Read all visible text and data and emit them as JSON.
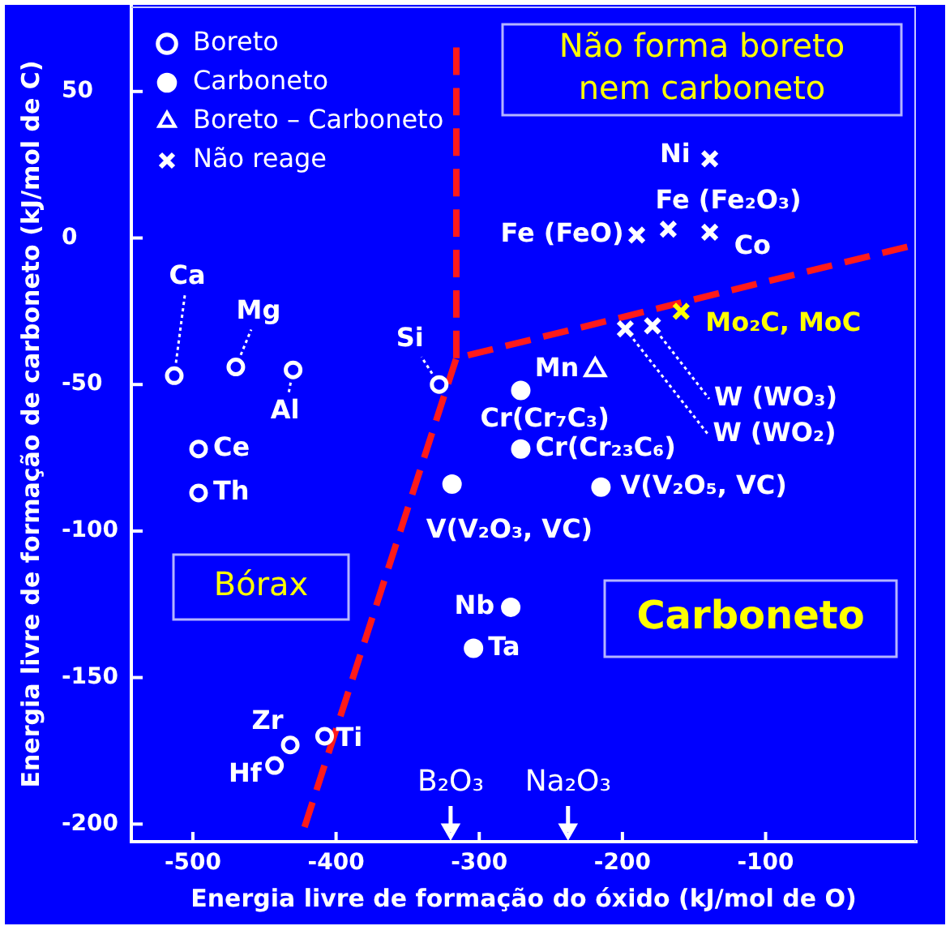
{
  "chart_data": {
    "type": "scatter",
    "xlabel": "Energia livre de formação do óxido (kJ/mol de O)",
    "ylabel": "Energia livre de formação de carboneto (kJ/mol de C)",
    "xlim": [
      -543,
      5
    ],
    "xticks": [
      -500,
      -400,
      -300,
      -200,
      -100
    ],
    "ylim": [
      -206,
      79
    ],
    "yticks": [
      -200,
      -150,
      -100,
      -50,
      0,
      50
    ],
    "legend": "top left",
    "series": [
      {
        "name": "Boreto",
        "color": "#ffffff",
        "marker": "circle",
        "x": [
          -513,
          -470,
          -430,
          -328,
          -496,
          -496,
          -432,
          -443,
          -408
        ],
        "values": [
          -47,
          -44,
          -45,
          -50,
          -72,
          -87,
          -173,
          -180,
          -170
        ]
      },
      {
        "name": "Carboneto",
        "color": "#ffffff",
        "marker": "circle",
        "x": [
          -319,
          -278,
          -304,
          -215,
          -271,
          -271
        ],
        "values": [
          -84,
          -126,
          -140,
          -85,
          -52,
          -72
        ]
      },
      {
        "name": "Boreto – Carboneto",
        "color": "#ffffff",
        "marker": "triangle",
        "x": [
          -219
        ],
        "values": [
          -45
        ]
      },
      {
        "name": "Não reage",
        "marker": "cross",
        "colors": [
          "#ffffff",
          "#ffffff",
          "#ffffff",
          "#ffffff",
          "#ffffff",
          "#ffffff",
          "#ffff00"
        ],
        "x": [
          -139,
          -168,
          -190,
          -139,
          -179,
          -198,
          -159
        ],
        "values": [
          27,
          3,
          1,
          2,
          -30,
          -31,
          -25
        ]
      },
      {
        "type": "line",
        "color": "#ff1a1a",
        "line_style": "dashed",
        "marker": "none",
        "x": [
          -316,
          -316
        ],
        "values": [
          65,
          -41
        ]
      },
      {
        "type": "line",
        "color": "#ff1a1a",
        "line_style": "dashed",
        "marker": "none",
        "x": [
          -422,
          -316,
          -1
        ],
        "values": [
          -201,
          -41,
          -3
        ]
      }
    ],
    "ref_lines": [
      {
        "axis": "x",
        "value": -320,
        "label": "B₂O₃"
      },
      {
        "axis": "x",
        "value": -238,
        "label": "Na₂O₃"
      }
    ],
    "annotations": [
      {
        "text": "Ca",
        "x": -513,
        "y": -47
      },
      {
        "text": "Mg",
        "x": -470,
        "y": -44
      },
      {
        "text": "Al",
        "x": -430,
        "y": -45
      },
      {
        "text": "Si",
        "x": -328,
        "y": -50
      },
      {
        "text": "Ce",
        "x": -496,
        "y": -72
      },
      {
        "text": "Th",
        "x": -496,
        "y": -87
      },
      {
        "text": "Zr",
        "x": -432,
        "y": -173
      },
      {
        "text": "Hf",
        "x": -443,
        "y": -180
      },
      {
        "text": "Ti",
        "x": -408,
        "y": -170
      },
      {
        "text": "V(V₂O₃, VC)",
        "x": -319,
        "y": -84
      },
      {
        "text": "Nb",
        "x": -278,
        "y": -126
      },
      {
        "text": "Ta",
        "x": -304,
        "y": -140
      },
      {
        "text": "V(V₂O₅, VC)",
        "x": -215,
        "y": -85
      },
      {
        "text": "Cr(Cr₇C₃)",
        "x": -271,
        "y": -52
      },
      {
        "text": "Cr(Cr₂₃C₆)",
        "x": -271,
        "y": -72
      },
      {
        "text": "Mn",
        "x": -219,
        "y": -45
      },
      {
        "text": "Ni",
        "x": -139,
        "y": 27
      },
      {
        "text": "Fe (Fe₂O₃)",
        "x": -168,
        "y": 3
      },
      {
        "text": "Fe (FeO)",
        "x": -190,
        "y": 1
      },
      {
        "text": "Co",
        "x": -139,
        "y": 2
      },
      {
        "text": "W (WO₃)",
        "x": -179,
        "y": -30
      },
      {
        "text": "W (WO₂)",
        "x": -198,
        "y": -31
      },
      {
        "text": "Mo₂C, MoC",
        "x": -159,
        "y": -25
      },
      "Não forma boreto nem carboneto",
      "Bórax",
      "Carboneto"
    ]
  }
}
